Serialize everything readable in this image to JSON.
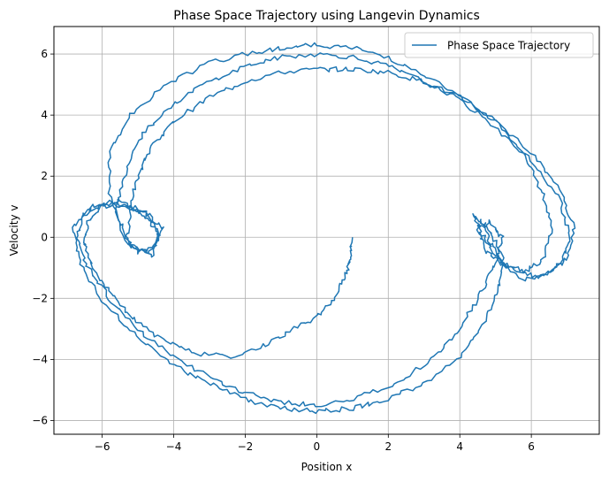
{
  "chart_data": {
    "type": "line",
    "title": "Phase Space Trajectory using Langevin Dynamics",
    "xlabel": "Position x",
    "ylabel": "Velocity v",
    "xlim": [
      -7.35,
      7.9
    ],
    "ylim": [
      -6.45,
      6.9
    ],
    "xticks": [
      -6,
      -4,
      -2,
      0,
      2,
      4,
      6
    ],
    "yticks": [
      -6,
      -4,
      -2,
      0,
      2,
      4,
      6
    ],
    "grid": true,
    "legend_position": "top-right",
    "series": [
      {
        "name": "Phase Space Trajectory",
        "color": "#1f77b4",
        "points": [
          [
            1.0,
            0.0
          ],
          [
            0.95,
            -0.6
          ],
          [
            0.8,
            -1.3
          ],
          [
            0.5,
            -2.0
          ],
          [
            0.0,
            -2.6
          ],
          [
            -0.6,
            -3.0
          ],
          [
            -1.4,
            -3.5
          ],
          [
            -2.4,
            -3.9
          ],
          [
            -3.4,
            -3.8
          ],
          [
            -4.3,
            -3.4
          ],
          [
            -5.1,
            -2.7
          ],
          [
            -5.7,
            -1.9
          ],
          [
            -6.2,
            -1.1
          ],
          [
            -6.5,
            -0.3
          ],
          [
            -6.4,
            0.5
          ],
          [
            -6.0,
            1.0
          ],
          [
            -5.4,
            1.1
          ],
          [
            -4.8,
            0.8
          ],
          [
            -4.3,
            0.3
          ],
          [
            -4.5,
            -0.3
          ],
          [
            -5.0,
            -0.5
          ],
          [
            -5.3,
            0.0
          ],
          [
            -5.2,
            1.0
          ],
          [
            -5.0,
            2.0
          ],
          [
            -4.6,
            3.0
          ],
          [
            -4.0,
            3.8
          ],
          [
            -3.0,
            4.6
          ],
          [
            -2.0,
            5.1
          ],
          [
            -1.0,
            5.4
          ],
          [
            0.0,
            5.5
          ],
          [
            1.0,
            5.5
          ],
          [
            2.0,
            5.4
          ],
          [
            3.0,
            5.1
          ],
          [
            4.0,
            4.6
          ],
          [
            5.0,
            3.8
          ],
          [
            5.8,
            2.7
          ],
          [
            6.3,
            1.5
          ],
          [
            6.6,
            0.3
          ],
          [
            6.3,
            -0.8
          ],
          [
            5.8,
            -1.1
          ],
          [
            5.2,
            -0.9
          ],
          [
            4.7,
            -0.4
          ],
          [
            4.5,
            0.3
          ],
          [
            4.8,
            0.5
          ],
          [
            5.2,
            0.0
          ],
          [
            5.0,
            -0.8
          ],
          [
            4.6,
            -1.8
          ],
          [
            4.0,
            -3.0
          ],
          [
            3.2,
            -4.0
          ],
          [
            2.2,
            -4.8
          ],
          [
            1.0,
            -5.3
          ],
          [
            0.0,
            -5.5
          ],
          [
            -1.0,
            -5.4
          ],
          [
            -2.0,
            -5.1
          ],
          [
            -3.0,
            -4.6
          ],
          [
            -4.0,
            -3.9
          ],
          [
            -5.0,
            -3.0
          ],
          [
            -5.8,
            -2.0
          ],
          [
            -6.4,
            -1.0
          ],
          [
            -6.7,
            0.0
          ],
          [
            -6.5,
            0.8
          ],
          [
            -6.0,
            1.1
          ],
          [
            -5.3,
            1.0
          ],
          [
            -4.7,
            0.6
          ],
          [
            -4.4,
            0.0
          ],
          [
            -4.7,
            -0.5
          ],
          [
            -5.2,
            -0.3
          ],
          [
            -5.6,
            0.8
          ],
          [
            -5.4,
            2.0
          ],
          [
            -5.0,
            3.2
          ],
          [
            -4.2,
            4.2
          ],
          [
            -3.2,
            5.0
          ],
          [
            -2.0,
            5.6
          ],
          [
            -1.0,
            5.9
          ],
          [
            0.0,
            6.0
          ],
          [
            1.0,
            5.9
          ],
          [
            2.0,
            5.6
          ],
          [
            3.0,
            5.1
          ],
          [
            4.0,
            4.5
          ],
          [
            5.0,
            3.6
          ],
          [
            6.0,
            2.5
          ],
          [
            6.8,
            1.2
          ],
          [
            7.1,
            0.0
          ],
          [
            6.8,
            -0.9
          ],
          [
            6.2,
            -1.3
          ],
          [
            5.5,
            -1.1
          ],
          [
            5.0,
            -0.6
          ],
          [
            4.6,
            0.2
          ],
          [
            4.4,
            0.7
          ],
          [
            4.8,
            0.3
          ],
          [
            5.2,
            -0.6
          ],
          [
            5.1,
            -1.6
          ],
          [
            4.7,
            -2.8
          ],
          [
            4.0,
            -3.9
          ],
          [
            3.0,
            -4.8
          ],
          [
            2.0,
            -5.3
          ],
          [
            1.0,
            -5.6
          ],
          [
            0.0,
            -5.7
          ],
          [
            -1.0,
            -5.6
          ],
          [
            -2.0,
            -5.3
          ],
          [
            -3.0,
            -4.8
          ],
          [
            -4.0,
            -4.2
          ],
          [
            -5.0,
            -3.3
          ],
          [
            -6.0,
            -2.1
          ],
          [
            -6.6,
            -0.9
          ],
          [
            -6.8,
            0.3
          ],
          [
            -6.3,
            1.0
          ],
          [
            -5.6,
            1.2
          ],
          [
            -4.9,
            0.9
          ],
          [
            -4.4,
            0.2
          ],
          [
            -4.6,
            -0.6
          ],
          [
            -5.3,
            -0.2
          ],
          [
            -5.8,
            1.4
          ],
          [
            -5.8,
            2.8
          ],
          [
            -5.2,
            4.0
          ],
          [
            -4.2,
            5.0
          ],
          [
            -3.0,
            5.7
          ],
          [
            -2.0,
            6.0
          ],
          [
            -1.0,
            6.2
          ],
          [
            0.0,
            6.3
          ],
          [
            1.0,
            6.2
          ],
          [
            2.0,
            5.9
          ],
          [
            3.0,
            5.3
          ],
          [
            4.0,
            4.6
          ],
          [
            5.0,
            3.8
          ],
          [
            6.0,
            2.8
          ],
          [
            6.8,
            1.6
          ],
          [
            7.2,
            0.3
          ],
          [
            7.0,
            -0.7
          ],
          [
            6.5,
            -1.2
          ],
          [
            5.8,
            -1.4
          ],
          [
            5.2,
            -0.9
          ],
          [
            4.8,
            -0.1
          ],
          [
            4.6,
            0.6
          ]
        ]
      }
    ]
  }
}
